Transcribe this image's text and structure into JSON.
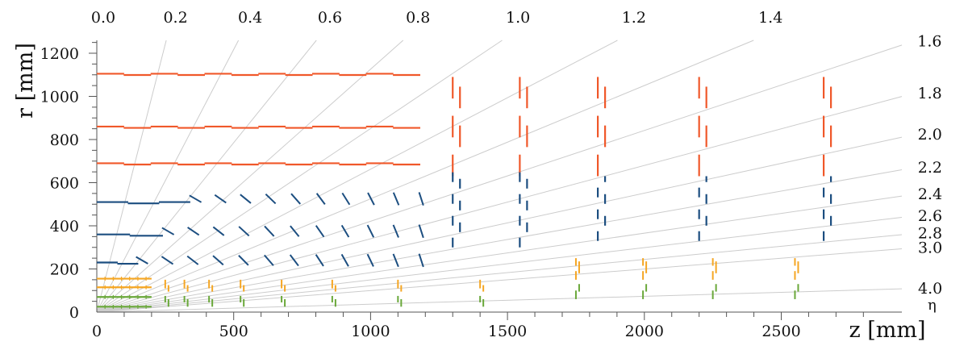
{
  "chart_data": {
    "type": "diagram",
    "xlabel": "z [mm]",
    "ylabel": "r [mm]",
    "xlim": [
      0,
      2900
    ],
    "ylim": [
      0,
      1250
    ],
    "x_ticks": [
      0,
      500,
      1000,
      1500,
      2000,
      2500
    ],
    "y_ticks": [
      0,
      200,
      400,
      600,
      800,
      1000,
      1200
    ],
    "eta_label": "η",
    "eta_lines": [
      {
        "label": "0.0",
        "value": 0.0
      },
      {
        "label": "0.2",
        "value": 0.2
      },
      {
        "label": "0.4",
        "value": 0.4
      },
      {
        "label": "0.6",
        "value": 0.6
      },
      {
        "label": "0.8",
        "value": 0.8
      },
      {
        "label": "1.0",
        "value": 1.0
      },
      {
        "label": "1.2",
        "value": 1.2
      },
      {
        "label": "1.4",
        "value": 1.4
      },
      {
        "label": "1.6",
        "value": 1.6
      },
      {
        "label": "1.8",
        "value": 1.8
      },
      {
        "label": "2.0",
        "value": 2.0
      },
      {
        "label": "2.2",
        "value": 2.2
      },
      {
        "label": "2.4",
        "value": 2.4
      },
      {
        "label": "2.6",
        "value": 2.6
      },
      {
        "label": "2.8",
        "value": 2.8
      },
      {
        "label": "3.0",
        "value": 3.0
      },
      {
        "label": "4.0",
        "value": 4.0
      }
    ],
    "colors": {
      "outer": "#f0582a",
      "strip": "#1c4e80",
      "pixel_a": "#f5a623",
      "pixel_b": "#6aa83a",
      "eta_line": "#cccccc",
      "axis": "#555555"
    },
    "outer_barrel_layers": [
      {
        "r": 690,
        "z_max": 1180
      },
      {
        "r": 860,
        "z_max": 1180
      },
      {
        "r": 1105,
        "z_max": 1180
      }
    ],
    "outer_endcap_disks": [
      {
        "z": 1300,
        "r_min": 630,
        "r_max": 1100
      },
      {
        "z": 1545,
        "r_min": 630,
        "r_max": 1100
      },
      {
        "z": 1830,
        "r_min": 630,
        "r_max": 1100
      },
      {
        "z": 2200,
        "r_min": 630,
        "r_max": 1100
      },
      {
        "z": 2655,
        "r_min": 630,
        "r_max": 1100
      }
    ],
    "strip_flat_layers": [
      {
        "r": 230,
        "z_max": 150
      },
      {
        "r": 360,
        "z_max": 240
      },
      {
        "r": 510,
        "z_max": 340
      }
    ],
    "strip_tilted_rows": [
      {
        "r": 240,
        "z_start": 165,
        "z_end": 1185,
        "count": 12
      },
      {
        "r": 375,
        "z_start": 260,
        "z_end": 1185,
        "count": 11
      },
      {
        "r": 525,
        "z_start": 360,
        "z_end": 1185,
        "count": 10
      }
    ],
    "strip_endcap_disks": [
      {
        "z": 1300,
        "r_min": 300,
        "r_max": 660
      },
      {
        "z": 1545,
        "r_min": 300,
        "r_max": 660
      },
      {
        "z": 1830,
        "r_min": 330,
        "r_max": 630
      },
      {
        "z": 2200,
        "r_min": 330,
        "r_max": 630
      },
      {
        "z": 2655,
        "r_min": 330,
        "r_max": 630
      }
    ],
    "pixel_barrel_layers": [
      {
        "r": 25,
        "z_max": 200,
        "color": "pixel_b"
      },
      {
        "r": 70,
        "z_max": 200,
        "color": "pixel_b"
      },
      {
        "r": 115,
        "z_max": 200,
        "color": "pixel_a"
      },
      {
        "r": 155,
        "z_max": 200,
        "color": "pixel_a"
      }
    ],
    "pixel_small_disks": [
      250,
      320,
      410,
      525,
      675,
      860,
      1100,
      1400
    ],
    "pixel_large_disks": [
      1750,
      1995,
      2250,
      2550
    ]
  }
}
